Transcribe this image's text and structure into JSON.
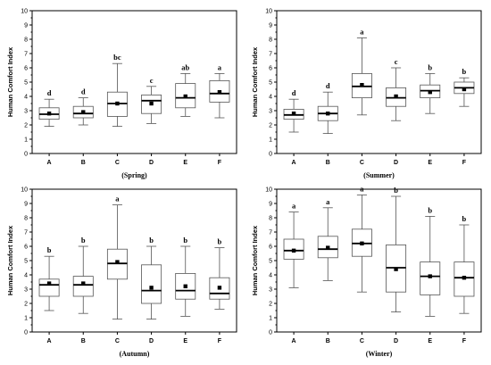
{
  "chart_data": [
    {
      "type": "box",
      "title": "(Spring)",
      "ylabel": "Human Comfort Index",
      "ylim": [
        0,
        10
      ],
      "yticks": [
        0,
        1,
        2,
        3,
        4,
        5,
        6,
        7,
        8,
        9,
        10
      ],
      "categories": [
        "A",
        "B",
        "C",
        "D",
        "E",
        "F"
      ],
      "boxes": [
        {
          "min": 1.9,
          "q1": 2.4,
          "median": 2.75,
          "q3": 3.2,
          "max": 3.8,
          "mean": 2.8,
          "letter": "d"
        },
        {
          "min": 2.0,
          "q1": 2.5,
          "median": 2.8,
          "q3": 3.3,
          "max": 3.9,
          "mean": 2.9,
          "letter": "d"
        },
        {
          "min": 1.9,
          "q1": 2.6,
          "median": 3.5,
          "q3": 4.3,
          "max": 6.3,
          "mean": 3.5,
          "letter": "bc"
        },
        {
          "min": 2.1,
          "q1": 2.8,
          "median": 3.7,
          "q3": 4.1,
          "max": 4.7,
          "mean": 3.5,
          "letter": "c"
        },
        {
          "min": 2.6,
          "q1": 3.2,
          "median": 3.9,
          "q3": 4.9,
          "max": 5.6,
          "mean": 4.0,
          "letter": "ab"
        },
        {
          "min": 2.5,
          "q1": 3.6,
          "median": 4.2,
          "q3": 5.1,
          "max": 5.6,
          "mean": 4.3,
          "letter": "a"
        }
      ]
    },
    {
      "type": "box",
      "title": "(Summer)",
      "ylabel": "Human Comfort Index",
      "ylim": [
        0,
        10
      ],
      "yticks": [
        0,
        1,
        2,
        3,
        4,
        5,
        6,
        7,
        8,
        9,
        10
      ],
      "categories": [
        "A",
        "B",
        "C",
        "D",
        "E",
        "F"
      ],
      "boxes": [
        {
          "min": 1.5,
          "q1": 2.4,
          "median": 2.7,
          "q3": 3.1,
          "max": 3.8,
          "mean": 2.8,
          "letter": "d"
        },
        {
          "min": 1.4,
          "q1": 2.3,
          "median": 2.8,
          "q3": 3.3,
          "max": 4.3,
          "mean": 2.8,
          "letter": "d"
        },
        {
          "min": 2.7,
          "q1": 3.9,
          "median": 4.7,
          "q3": 5.6,
          "max": 8.1,
          "mean": 4.8,
          "letter": "a"
        },
        {
          "min": 2.3,
          "q1": 3.3,
          "median": 3.9,
          "q3": 4.6,
          "max": 6.0,
          "mean": 4.0,
          "letter": "c"
        },
        {
          "min": 2.8,
          "q1": 3.9,
          "median": 4.4,
          "q3": 4.8,
          "max": 5.6,
          "mean": 4.3,
          "letter": "b"
        },
        {
          "min": 3.3,
          "q1": 4.2,
          "median": 4.6,
          "q3": 5.0,
          "max": 5.3,
          "mean": 4.5,
          "letter": "b"
        }
      ]
    },
    {
      "type": "box",
      "title": "(Autumn)",
      "ylabel": "Human Comfort Index",
      "ylim": [
        0,
        10
      ],
      "yticks": [
        0,
        1,
        2,
        3,
        4,
        5,
        6,
        7,
        8,
        9,
        10
      ],
      "categories": [
        "A",
        "B",
        "C",
        "D",
        "E",
        "F"
      ],
      "boxes": [
        {
          "min": 1.5,
          "q1": 2.5,
          "median": 3.3,
          "q3": 3.7,
          "max": 5.3,
          "mean": 3.4,
          "letter": "b"
        },
        {
          "min": 1.3,
          "q1": 2.5,
          "median": 3.3,
          "q3": 3.9,
          "max": 6.0,
          "mean": 3.4,
          "letter": "b"
        },
        {
          "min": 0.9,
          "q1": 3.7,
          "median": 4.8,
          "q3": 5.8,
          "max": 8.9,
          "mean": 4.9,
          "letter": "a"
        },
        {
          "min": 0.9,
          "q1": 2.0,
          "median": 2.9,
          "q3": 4.7,
          "max": 6.0,
          "mean": 3.1,
          "letter": "b"
        },
        {
          "min": 1.1,
          "q1": 2.3,
          "median": 2.9,
          "q3": 4.1,
          "max": 6.0,
          "mean": 3.2,
          "letter": "b"
        },
        {
          "min": 1.6,
          "q1": 2.3,
          "median": 2.7,
          "q3": 3.8,
          "max": 5.9,
          "mean": 3.1,
          "letter": "b"
        }
      ]
    },
    {
      "type": "box",
      "title": "(Winter)",
      "ylabel": "Human Comfort Index",
      "ylim": [
        0,
        10
      ],
      "yticks": [
        0,
        1,
        2,
        3,
        4,
        5,
        6,
        7,
        8,
        9,
        10
      ],
      "categories": [
        "A",
        "B",
        "C",
        "D",
        "E",
        "F"
      ],
      "boxes": [
        {
          "min": 3.1,
          "q1": 5.1,
          "median": 5.7,
          "q3": 6.5,
          "max": 8.4,
          "mean": 5.7,
          "letter": "a"
        },
        {
          "min": 3.6,
          "q1": 5.2,
          "median": 5.8,
          "q3": 6.7,
          "max": 8.7,
          "mean": 5.9,
          "letter": "a"
        },
        {
          "min": 2.8,
          "q1": 5.3,
          "median": 6.2,
          "q3": 7.2,
          "max": 9.6,
          "mean": 6.2,
          "letter": "a"
        },
        {
          "min": 1.4,
          "q1": 2.8,
          "median": 4.5,
          "q3": 6.1,
          "max": 9.5,
          "mean": 4.4,
          "letter": "b"
        },
        {
          "min": 1.1,
          "q1": 2.6,
          "median": 3.9,
          "q3": 4.9,
          "max": 8.1,
          "mean": 3.9,
          "letter": "b"
        },
        {
          "min": 1.3,
          "q1": 2.5,
          "median": 3.8,
          "q3": 4.9,
          "max": 7.5,
          "mean": 3.8,
          "letter": "b"
        }
      ]
    }
  ]
}
